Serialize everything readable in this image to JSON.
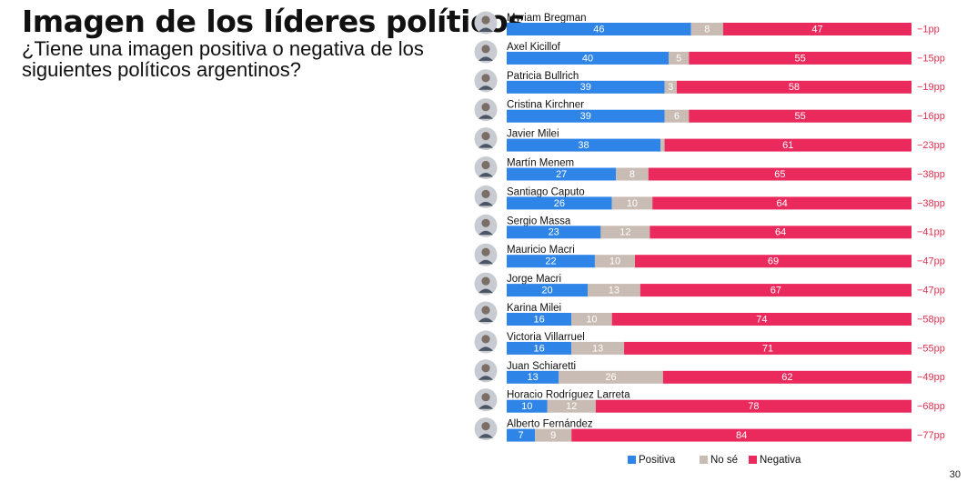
{
  "header": {
    "title": "Imagen de los líderes políticos",
    "subtitle": "¿Tiene una imagen positiva o negativa de los siguientes políticos argentinos?"
  },
  "page_number": "30",
  "colors": {
    "positive": "#2f84e8",
    "neutral": "#c9bcb4",
    "negative": "#ea2a5d",
    "diff_text": "#e0304f"
  },
  "chart_data": {
    "type": "bar",
    "orientation": "horizontal",
    "stacked": true,
    "categories": [
      "Myriam Bregman",
      "Axel Kicillof",
      "Patricia Bullrich",
      "Cristina Kirchner",
      "Javier Milei",
      "Martín Menem",
      "Santiago Caputo",
      "Sergio Massa",
      "Mauricio Macri",
      "Jorge Macri",
      "Karina Milei",
      "Victoria Villarruel",
      "Juan Schiaretti",
      "Horacio Rodríguez Larreta",
      "Alberto Fernández"
    ],
    "series": [
      {
        "name": "Positiva",
        "color": "#2f84e8",
        "values": [
          46,
          40,
          39,
          39,
          38,
          27,
          26,
          23,
          22,
          20,
          16,
          16,
          13,
          10,
          7
        ]
      },
      {
        "name": "No sé",
        "color": "#c9bcb4",
        "values": [
          8,
          5,
          3,
          6,
          1,
          8,
          10,
          12,
          10,
          13,
          10,
          13,
          26,
          12,
          9
        ]
      },
      {
        "name": "Negativa",
        "color": "#ea2a5d",
        "values": [
          47,
          55,
          58,
          55,
          61,
          65,
          64,
          64,
          69,
          67,
          74,
          71,
          62,
          78,
          84
        ]
      }
    ],
    "value_labels": [
      [
        "46",
        "8",
        "47"
      ],
      [
        "40",
        "5",
        "55"
      ],
      [
        "39",
        "3",
        "58"
      ],
      [
        "39",
        "6",
        "55"
      ],
      [
        "38",
        "",
        "61"
      ],
      [
        "27",
        "8",
        "65"
      ],
      [
        "26",
        "10",
        "64"
      ],
      [
        "23",
        "12",
        "64"
      ],
      [
        "22",
        "10",
        "69"
      ],
      [
        "20",
        "13",
        "67"
      ],
      [
        "16",
        "10",
        "74"
      ],
      [
        "16",
        "13",
        "71"
      ],
      [
        "13",
        "26",
        "62"
      ],
      [
        "10",
        "12",
        "78"
      ],
      [
        "7",
        "9",
        "84"
      ]
    ],
    "differences": [
      "−1pp",
      "−15pp",
      "−19pp",
      "−16pp",
      "−23pp",
      "−38pp",
      "−38pp",
      "−41pp",
      "−47pp",
      "−47pp",
      "−58pp",
      "−55pp",
      "−49pp",
      "−68pp",
      "−77pp"
    ],
    "legend": {
      "position": "bottom"
    }
  }
}
